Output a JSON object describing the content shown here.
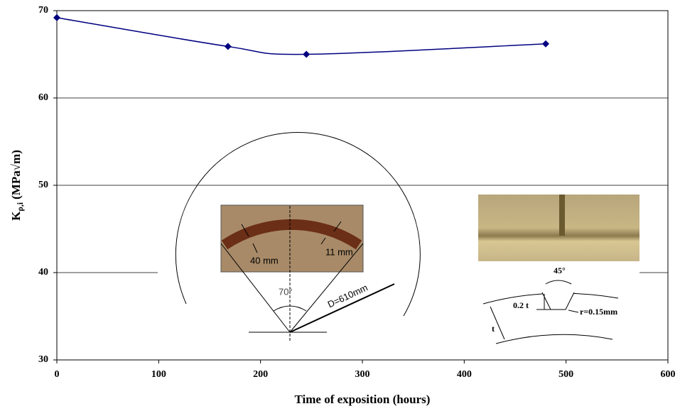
{
  "chart_data": {
    "type": "line",
    "x_label": "Time of exposition (hours)",
    "y_label": "K",
    "y_label_sub": "ρ,i",
    "y_label_unit": "(MPa√m)",
    "x": [
      0,
      168,
      245,
      480
    ],
    "series": [
      {
        "color": "#000080",
        "values": [
          69.2,
          65.9,
          65.0,
          66.2
        ]
      }
    ],
    "xlim": [
      0,
      600
    ],
    "xticks": [
      0,
      100,
      200,
      300,
      400,
      500,
      600
    ],
    "ylim": [
      30,
      70
    ],
    "yticks": [
      30,
      40,
      50,
      60,
      70
    ],
    "grid": true,
    "smooth": true,
    "annotations": [
      "40 mm",
      "11 mm",
      "70°",
      "D=610mm",
      "45°",
      "0.2 t",
      "r=0.15mm",
      "t"
    ]
  }
}
